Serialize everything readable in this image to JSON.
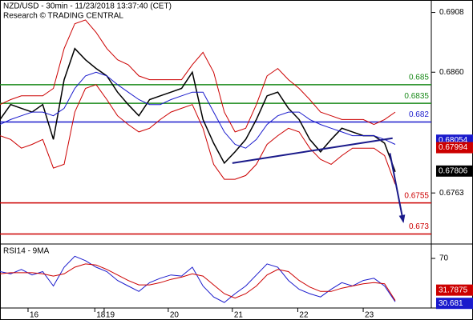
{
  "chart_data": {
    "type": "price",
    "title": "NZD/USD - 30min - 11/23/2018 13:37:40 (CET)",
    "subtitle": "Research © TRADING CENTRAL",
    "xlim": [
      0,
      323
    ],
    "xticks": [
      {
        "value": 21,
        "label": "16"
      },
      {
        "value": 71,
        "label": "18"
      },
      {
        "value": 78,
        "label": "19"
      },
      {
        "value": 126,
        "label": "20"
      },
      {
        "value": 174,
        "label": "21"
      },
      {
        "value": 223,
        "label": "22"
      },
      {
        "value": 272,
        "label": "23"
      }
    ],
    "ylim": [
      0.6722,
      0.6918
    ],
    "yticks": [
      0.6908,
      {
        "value": 0.686,
        "label": "0.6860"
      },
      0.6763
    ],
    "x": [
      0,
      8,
      16,
      24,
      32,
      40,
      48,
      56,
      64,
      72,
      80,
      88,
      96,
      104,
      112,
      120,
      128,
      136,
      144,
      152,
      160,
      168,
      176,
      184,
      192,
      200,
      208,
      216,
      224,
      232,
      240,
      248,
      256,
      264,
      272,
      280,
      288,
      296
    ],
    "series": [
      {
        "color": "#000000",
        "values": [
          0.6822,
          0.6834,
          0.6831,
          0.6828,
          0.6834,
          0.6806,
          0.6854,
          0.6879,
          0.687,
          0.6863,
          0.6857,
          0.6844,
          0.6834,
          0.6825,
          0.6838,
          0.6841,
          0.6844,
          0.6847,
          0.686,
          0.6822,
          0.6803,
          0.6787,
          0.6796,
          0.6806,
          0.6822,
          0.6841,
          0.6844,
          0.6831,
          0.6822,
          0.6806,
          0.6796,
          0.6806,
          0.6815,
          0.6812,
          0.6809,
          0.6809,
          0.6803,
          0.678
        ]
      },
      {
        "color": "#cc0000",
        "values": [
          0.6834,
          0.6838,
          0.6841,
          0.6841,
          0.6841,
          0.6847,
          0.6879,
          0.6899,
          0.6902,
          0.6892,
          0.6879,
          0.687,
          0.6866,
          0.6857,
          0.6854,
          0.6854,
          0.6854,
          0.6854,
          0.6866,
          0.6876,
          0.686,
          0.6828,
          0.6812,
          0.6815,
          0.6834,
          0.6857,
          0.6863,
          0.6854,
          0.6847,
          0.6838,
          0.6828,
          0.6825,
          0.6822,
          0.6822,
          0.6822,
          0.6818,
          0.6822,
          0.6828
        ]
      },
      {
        "color": "#cc0000",
        "values": [
          0.6809,
          0.6806,
          0.6799,
          0.6802,
          0.6806,
          0.6783,
          0.6786,
          0.6828,
          0.6847,
          0.685,
          0.6838,
          0.6825,
          0.6818,
          0.6812,
          0.6815,
          0.6822,
          0.6828,
          0.6831,
          0.6834,
          0.6815,
          0.6786,
          0.6774,
          0.6774,
          0.6777,
          0.6786,
          0.6802,
          0.6809,
          0.6815,
          0.6812,
          0.6799,
          0.679,
          0.6786,
          0.6793,
          0.6799,
          0.6799,
          0.6799,
          0.6793,
          0.677
        ]
      },
      {
        "color": "#1a1acc",
        "values": [
          0.6818,
          0.6822,
          0.6825,
          0.6828,
          0.6828,
          0.6825,
          0.6831,
          0.6847,
          0.6857,
          0.686,
          0.6857,
          0.685,
          0.6844,
          0.6838,
          0.6834,
          0.6834,
          0.6838,
          0.6841,
          0.6844,
          0.6844,
          0.6828,
          0.6812,
          0.6802,
          0.6799,
          0.6806,
          0.6818,
          0.6825,
          0.6828,
          0.6828,
          0.6822,
          0.6818,
          0.6815,
          0.6812,
          0.6809,
          0.6809,
          0.6809,
          0.6806,
          0.6802
        ]
      }
    ],
    "levels": [
      {
        "value": 0.685,
        "color": "#1a8a1a"
      },
      {
        "value": 0.6835,
        "color": "#1a8a1a"
      },
      {
        "value": 0.682,
        "color": "#1a1acc"
      },
      {
        "value": 0.6755,
        "color": "#cc0000"
      },
      {
        "value": 0.673,
        "color": "#cc0000"
      }
    ],
    "price_tags": [
      {
        "value": 0.68054,
        "color": "#1a1acc"
      },
      {
        "value": 0.67994,
        "color": "#cc0000"
      },
      {
        "value": 0.67806,
        "color": "#000000"
      }
    ],
    "trendline": {
      "x": [
        174,
        294
      ],
      "y": [
        0.6787,
        0.6807
      ]
    },
    "forecast_arrow": {
      "x": [
        292,
        302
      ],
      "y": [
        0.6795,
        0.674
      ]
    },
    "rsi": {
      "title": "RSI14 - 9MA",
      "ylim": [
        25,
        78
      ],
      "yticks": [
        70
      ],
      "series": [
        {
          "color": "#1a1acc",
          "values": [
            58,
            56,
            60,
            55,
            58,
            45,
            62,
            72,
            68,
            62,
            58,
            50,
            45,
            40,
            48,
            52,
            55,
            54,
            62,
            45,
            35,
            30,
            38,
            45,
            55,
            65,
            62,
            50,
            42,
            38,
            35,
            42,
            48,
            45,
            50,
            52,
            45,
            30.681
          ]
        },
        {
          "color": "#cc0000",
          "values": [
            56,
            57,
            57,
            57,
            56,
            54,
            56,
            62,
            65,
            64,
            60,
            55,
            50,
            46,
            46,
            48,
            51,
            53,
            56,
            54,
            46,
            38,
            34,
            38,
            45,
            55,
            60,
            58,
            50,
            44,
            40,
            40,
            43,
            45,
            47,
            48,
            47,
            31.7875
          ]
        }
      ]
    }
  }
}
